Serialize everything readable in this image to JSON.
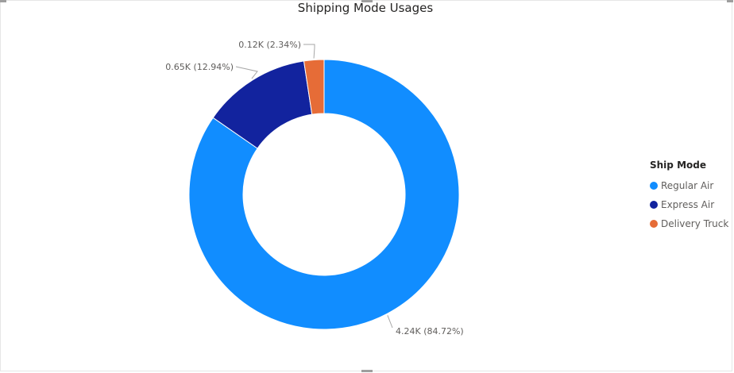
{
  "chart_data": {
    "type": "pie",
    "title": "Shipping Mode Usages",
    "categories": [
      "Regular Air",
      "Express Air",
      "Delivery Truck"
    ],
    "values": [
      4.24,
      0.65,
      0.12
    ],
    "percentages": [
      84.72,
      12.94,
      2.34
    ],
    "data_labels": [
      "4.24K (84.72%)",
      "0.65K (12.94%)",
      "0.12K (2.34%)"
    ],
    "colors": [
      "#118dff",
      "#12239e",
      "#e66c37"
    ],
    "legend": {
      "title": "Ship Mode",
      "placement": "right"
    }
  }
}
